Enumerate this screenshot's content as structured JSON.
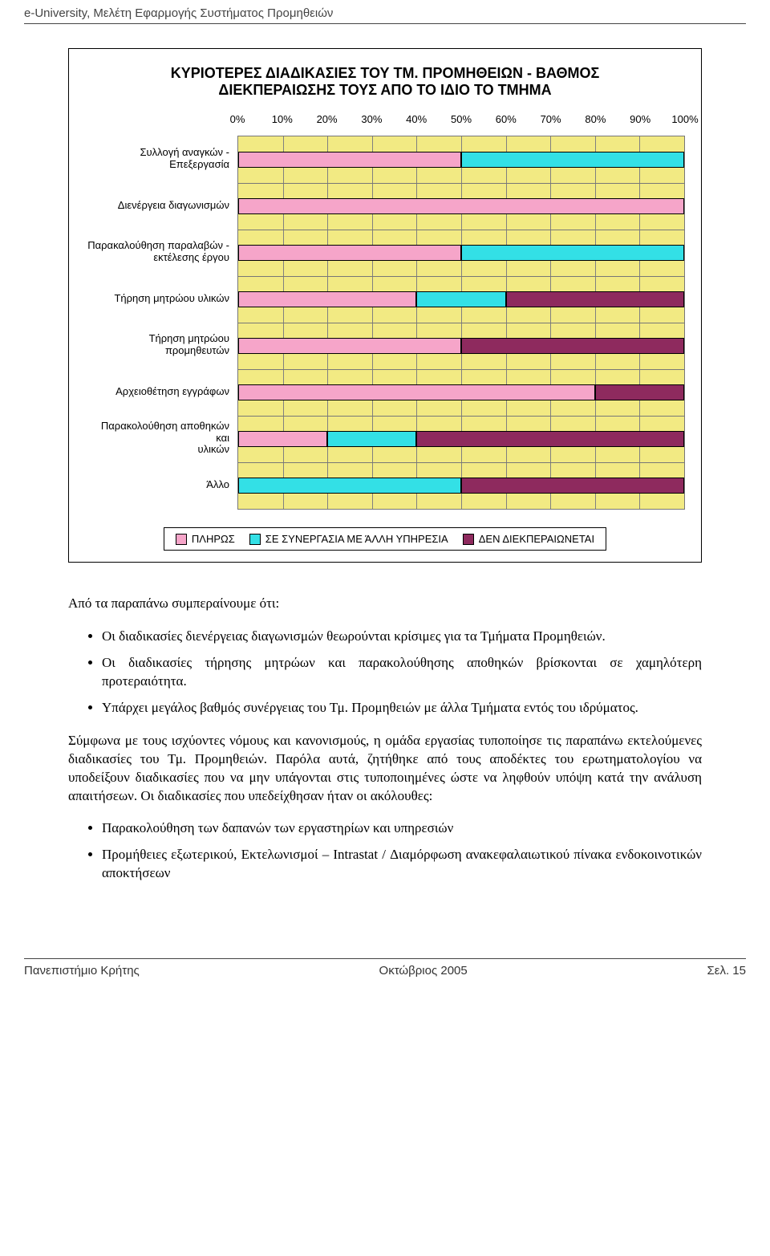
{
  "header": {
    "text": "e-University, Μελέτη Εφαρμογής Συστήματος Προμηθειών"
  },
  "chart": {
    "type": "bar",
    "title": "ΚΥΡΙΟΤΕΡΕΣ ΔΙΑΔΙΚΑΣΙΕΣ ΤΟΥ ΤΜ. ΠΡΟΜΗΘΕΙΩΝ - ΒΑΘΜΟΣ\nΔΙΕΚΠΕΡΑΙΩΣΗΣ ΤΟΥΣ ΑΠΟ ΤΟ ΙΔΙΟ ΤΟ ΤΜΗΜΑ",
    "xticks": [
      "0%",
      "10%",
      "20%",
      "30%",
      "40%",
      "50%",
      "60%",
      "70%",
      "80%",
      "90%",
      "100%"
    ],
    "plot_bg": "#f2ea83",
    "grid_color": "#808080",
    "series": [
      {
        "label": "ΠΛΗΡΩΣ",
        "color": "#f6a5c9"
      },
      {
        "label": "ΣΕ ΣΥΝΕΡΓΑΣΙΑ ΜΕ ΆΛΛΗ ΥΠΗΡΕΣΙΑ",
        "color": "#33e0e6"
      },
      {
        "label": "ΔΕΝ ΔΙΕΚΠΕΡΑΙΩΝΕΤΑΙ",
        "color": "#8e2a5e"
      }
    ],
    "categories": [
      {
        "label": "Συλλογή αναγκών - Επεξεργασία",
        "pliros": 50,
        "synergasia": 50,
        "den": 0
      },
      {
        "label": "Διενέργεια διαγωνισμών",
        "pliros": 100,
        "synergasia": 0,
        "den": 0
      },
      {
        "label": "Παρακαλούθηση παραλαβών -\nεκτέλεσης έργου",
        "pliros": 50,
        "synergasia": 50,
        "den": 0
      },
      {
        "label": "Τήρηση μητρώου υλικών",
        "pliros": 40,
        "synergasia": 20,
        "den": 40
      },
      {
        "label": "Τήρηση μητρώου προμηθευτών",
        "pliros": 50,
        "synergasia": 0,
        "den": 50
      },
      {
        "label": "Αρχειοθέτηση εγγράφων",
        "pliros": 80,
        "synergasia": 0,
        "den": 20
      },
      {
        "label": "Παρακολούθηση αποθηκών και\nυλικών",
        "pliros": 20,
        "synergasia": 20,
        "den": 60
      },
      {
        "label": "Άλλο",
        "pliros": 0,
        "synergasia": 50,
        "den": 50
      }
    ]
  },
  "body": {
    "intro": "Από τα παραπάνω συμπεραίνουμε ότι:",
    "bullets1": [
      "Οι διαδικασίες διενέργειας διαγωνισμών θεωρούνται κρίσιμες για τα Τμήματα Προμηθειών.",
      "Οι διαδικασίες τήρησης μητρώων και παρακολούθησης αποθηκών βρίσκονται σε χαμηλότερη προτεραιότητα.",
      "Υπάρχει μεγάλος βαθμός συνέργειας του Τμ. Προμηθειών με άλλα Τμήματα εντός του ιδρύματος."
    ],
    "para2": "Σύμφωνα με τους ισχύοντες νόμους και κανονισμούς, η ομάδα εργασίας τυποποίησε τις παραπάνω εκτελούμενες διαδικασίες του Τμ. Προμηθειών. Παρόλα αυτά, ζητήθηκε από τους αποδέκτες του ερωτηματολογίου να υποδείξουν διαδικασίες που να μην υπάγονται στις τυποποιημένες ώστε να ληφθούν υπόψη κατά την ανάλυση απαιτήσεων. Οι διαδικασίες που υπεδείχθησαν ήταν οι ακόλουθες:",
    "bullets2": [
      "Παρακολούθηση των δαπανών των εργαστηρίων και υπηρεσιών",
      "Προμήθειες εξωτερικού, Εκτελωνισμοί – Intrastat / Διαμόρφωση ανακεφαλαιωτικού πίνακα ενδοκοινοτικών αποκτήσεων"
    ]
  },
  "footer": {
    "left": "Πανεπιστήμιο Κρήτης",
    "center": "Οκτώβριος 2005",
    "right": "Σελ. 15"
  }
}
